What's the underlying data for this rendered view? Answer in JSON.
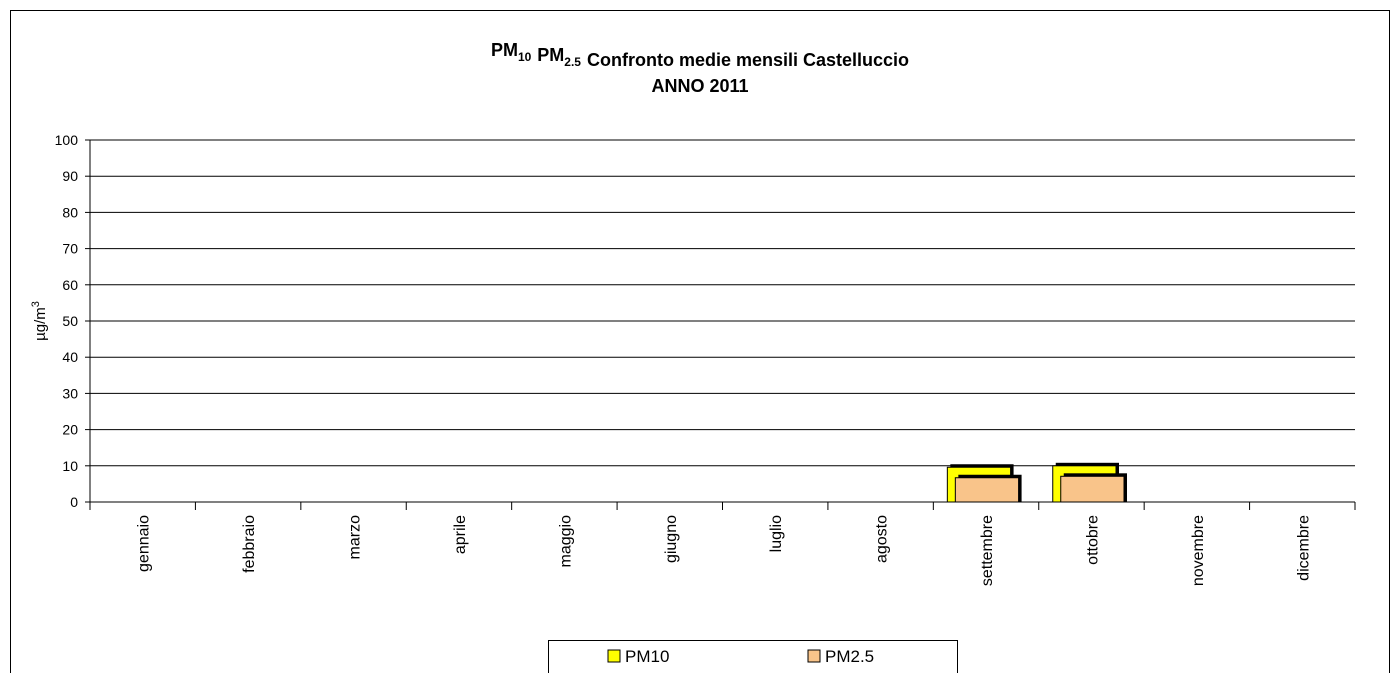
{
  "chart_data": {
    "type": "bar",
    "title": [
      {
        "text": "PM",
        "sub": "10"
      },
      {
        "text": "PM",
        "sub": "2.5"
      },
      {
        "text": "Confronto medie mensili Castelluccio"
      }
    ],
    "subtitle": "ANNO 2011",
    "ylabel": {
      "text": "µg/m",
      "sup": "3"
    },
    "categories": [
      "gennaio",
      "febbraio",
      "marzo",
      "aprile",
      "maggio",
      "giugno",
      "luglio",
      "agosto",
      "settembre",
      "ottobre",
      "novembre",
      "dicembre"
    ],
    "series": [
      {
        "name": "PM10",
        "color": "#ffff00",
        "values": [
          null,
          null,
          null,
          null,
          null,
          null,
          null,
          null,
          9.6,
          10,
          null,
          null
        ]
      },
      {
        "name": "PM2.5",
        "color": "#f9c48a",
        "values": [
          null,
          null,
          null,
          null,
          null,
          null,
          null,
          null,
          6.7,
          7.1,
          null,
          null
        ]
      }
    ],
    "ylim": [
      0,
      100
    ],
    "yticks": [
      0,
      10,
      20,
      30,
      40,
      50,
      60,
      70,
      80,
      90,
      100
    ],
    "grid": true
  }
}
